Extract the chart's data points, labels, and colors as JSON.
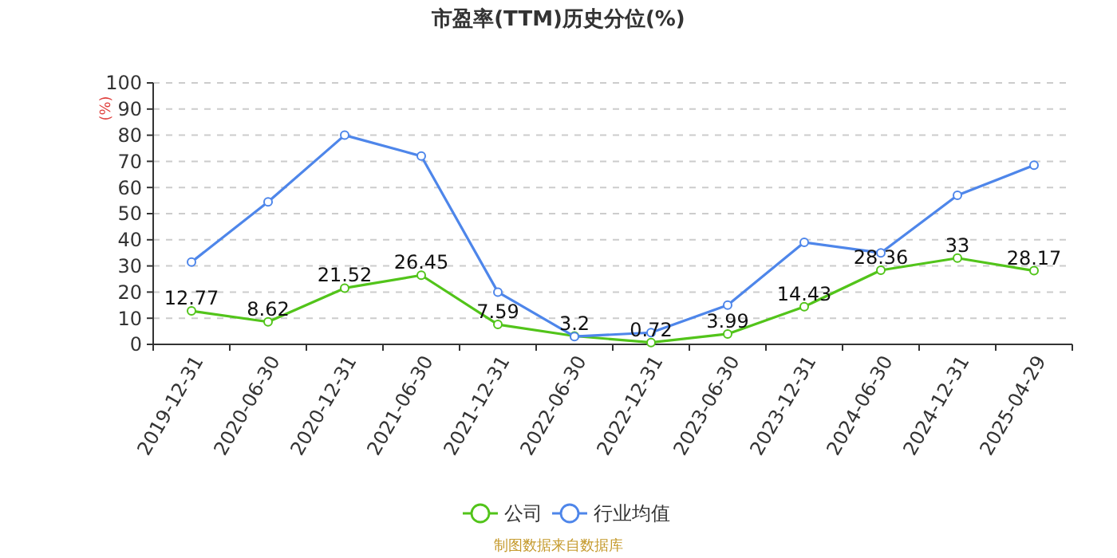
{
  "chart_data": {
    "type": "line",
    "title": "市盈率(TTM)历史分位(%)",
    "ylabel": "(%)",
    "categories": [
      "2019-12-31",
      "2020-06-30",
      "2020-12-31",
      "2021-06-30",
      "2021-12-31",
      "2022-06-30",
      "2022-12-31",
      "2023-06-30",
      "2023-12-31",
      "2024-06-30",
      "2024-12-31",
      "2025-04-29"
    ],
    "series": [
      {
        "name": "公司",
        "color": "#52c41a",
        "values": [
          12.77,
          8.62,
          21.52,
          26.45,
          7.59,
          3.2,
          0.72,
          3.99,
          14.43,
          28.36,
          33,
          28.17
        ],
        "value_labels": [
          "12.77",
          "8.62",
          "21.52",
          "26.45",
          "7.59",
          "3.2",
          "0.72",
          "3.99",
          "14.43",
          "28.36",
          "33",
          "28.17"
        ]
      },
      {
        "name": "行业均值",
        "color": "#4e86ea",
        "values": [
          31.5,
          54.5,
          80,
          72,
          20,
          3,
          4.5,
          15,
          39,
          35,
          57,
          68.5
        ]
      }
    ],
    "ylim": [
      0,
      100
    ],
    "yticks": [
      0,
      10,
      20,
      30,
      40,
      50,
      60,
      70,
      80,
      90,
      100
    ],
    "grid": "y",
    "legend": "bottom",
    "marker": "circle",
    "line_style": "solid",
    "annotations": [
      "制图数据来自数据库"
    ]
  }
}
